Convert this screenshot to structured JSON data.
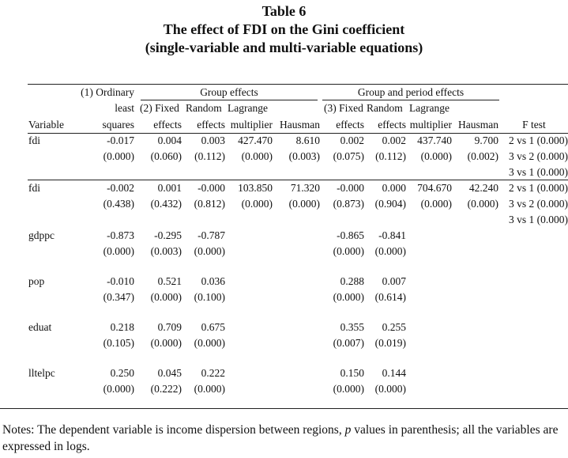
{
  "title": {
    "line1": "Table 6",
    "line2": "The effect of FDI on the Gini coefficient",
    "line3": "(single-variable and multi-variable equations)"
  },
  "header": {
    "group_effects": "Group effects",
    "group_period_effects": "Group and period effects",
    "col1_a": "(1) Ordinary",
    "col1_b": "least",
    "col1_c": "squares",
    "col2_a": "(2) Fixed",
    "col2_b": "effects",
    "random_a": "Random",
    "random_b": "effects",
    "lagrange_a": "Lagrange",
    "lagrange_b": "multiplier",
    "hausman": "Hausman",
    "col3_a": "(3) Fixed",
    "col3_b": "effects",
    "variable": "Variable",
    "ftest": "F test"
  },
  "rows": [
    {
      "label": "fdi",
      "coef": [
        "-0.017",
        "0.004",
        "0.003",
        "427.470",
        "8.610",
        "0.002",
        "0.002",
        "437.740",
        "9.700"
      ],
      "pval": [
        "(0.000)",
        "(0.060)",
        "(0.112)",
        "(0.000)",
        "(0.003)",
        "(0.075)",
        "(0.112)",
        "(0.000)",
        "(0.002)"
      ],
      "ftest": [
        "2 vs 1 (0.000)",
        "3 vs 2 (0.000)",
        "3 vs 1 (0.000)"
      ]
    },
    {
      "label": "fdi",
      "coef": [
        "-0.002",
        "0.001",
        "-0.000",
        "103.850",
        "71.320",
        "-0.000",
        "0.000",
        "704.670",
        "42.240"
      ],
      "pval": [
        "(0.438)",
        "(0.432)",
        "(0.812)",
        "(0.000)",
        "(0.000)",
        "(0.873)",
        "(0.904)",
        "(0.000)",
        "(0.000)"
      ],
      "ftest": [
        "2 vs 1 (0.000)",
        "3 vs 2 (0.000)",
        "3 vs 1 (0.000)"
      ]
    },
    {
      "label": "gdppc",
      "coef": [
        "-0.873",
        "-0.295",
        "-0.787",
        "",
        "",
        "-0.865",
        "-0.841",
        "",
        ""
      ],
      "pval": [
        "(0.000)",
        "(0.003)",
        "(0.000)",
        "",
        "",
        "(0.000)",
        "(0.000)",
        "",
        ""
      ]
    },
    {
      "label": "pop",
      "coef": [
        "-0.010",
        "0.521",
        "0.036",
        "",
        "",
        "0.288",
        "0.007",
        "",
        ""
      ],
      "pval": [
        "(0.347)",
        "(0.000)",
        "(0.100)",
        "",
        "",
        "(0.000)",
        "(0.614)",
        "",
        ""
      ]
    },
    {
      "label": "eduat",
      "coef": [
        "0.218",
        "0.709",
        "0.675",
        "",
        "",
        "0.355",
        "0.255",
        "",
        ""
      ],
      "pval": [
        "(0.105)",
        "(0.000)",
        "(0.000)",
        "",
        "",
        "(0.007)",
        "(0.019)",
        "",
        ""
      ]
    },
    {
      "label": "lltelpc",
      "coef": [
        "0.250",
        "0.045",
        "0.222",
        "",
        "",
        "0.150",
        "0.144",
        "",
        ""
      ],
      "pval": [
        "(0.000)",
        "(0.222)",
        "(0.000)",
        "",
        "",
        "(0.000)",
        "(0.000)",
        "",
        ""
      ]
    }
  ],
  "notes": {
    "pre": "Notes: The dependent variable is income dispersion between regions, ",
    "p": "p",
    "post": " values in parenthesis; all the variables are expressed in logs."
  }
}
